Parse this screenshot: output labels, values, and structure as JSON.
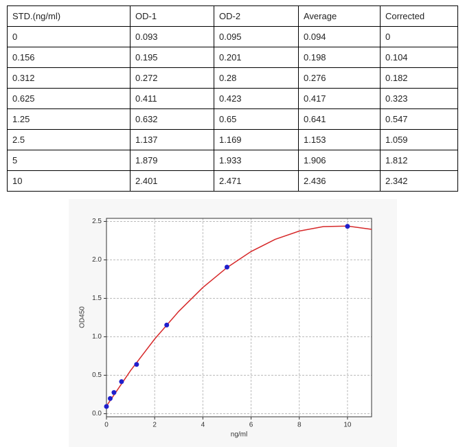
{
  "table": {
    "header": [
      "STD.(ng/ml)",
      "OD-1",
      "OD-2",
      "Average",
      "Corrected"
    ],
    "rows": [
      [
        "0",
        "0.093",
        "0.095",
        "0.094",
        "0"
      ],
      [
        "0.156",
        "0.195",
        "0.201",
        "0.198",
        "0.104"
      ],
      [
        "0.312",
        "0.272",
        "0.28",
        "0.276",
        "0.182"
      ],
      [
        "0.625",
        "0.411",
        "0.423",
        "0.417",
        "0.323"
      ],
      [
        "1.25",
        "0.632",
        "0.65",
        "0.641",
        "0.547"
      ],
      [
        "2.5",
        "1.137",
        "1.169",
        "1.153",
        "1.059"
      ],
      [
        "5",
        "1.879",
        "1.933",
        "1.906",
        "1.812"
      ],
      [
        "10",
        "2.401",
        "2.471",
        "2.436",
        "2.342"
      ]
    ]
  },
  "chart_data": {
    "type": "scatter",
    "x": [
      0,
      0.156,
      0.312,
      0.625,
      1.25,
      2.5,
      5,
      10
    ],
    "values": [
      0.094,
      0.198,
      0.276,
      0.417,
      0.641,
      1.153,
      1.906,
      2.436
    ],
    "color": "#1f1fcc",
    "fit": {
      "x": [
        0,
        1,
        2,
        3,
        4,
        5,
        6,
        7,
        8,
        9,
        10,
        11
      ],
      "values": [
        0.1,
        0.561,
        0.971,
        1.331,
        1.641,
        1.9,
        2.109,
        2.267,
        2.375,
        2.433,
        2.44,
        2.397
      ],
      "color": "#d62728"
    },
    "xlabel": "ng/ml",
    "ylabel": "OD450",
    "xlim": [
      0,
      11
    ],
    "ylim": [
      -0.04,
      2.54
    ],
    "xticks": [
      0,
      2,
      4,
      6,
      8,
      10
    ],
    "yticks": [
      {
        "value": 0,
        "label": "0.0"
      },
      {
        "value": 0.5,
        "label": "0.5"
      },
      {
        "value": 1,
        "label": "1.0"
      },
      {
        "value": 1.5,
        "label": "1.5"
      },
      {
        "value": 2,
        "label": "2.0"
      },
      {
        "value": 2.5,
        "label": "2.5"
      }
    ],
    "grid": true
  }
}
